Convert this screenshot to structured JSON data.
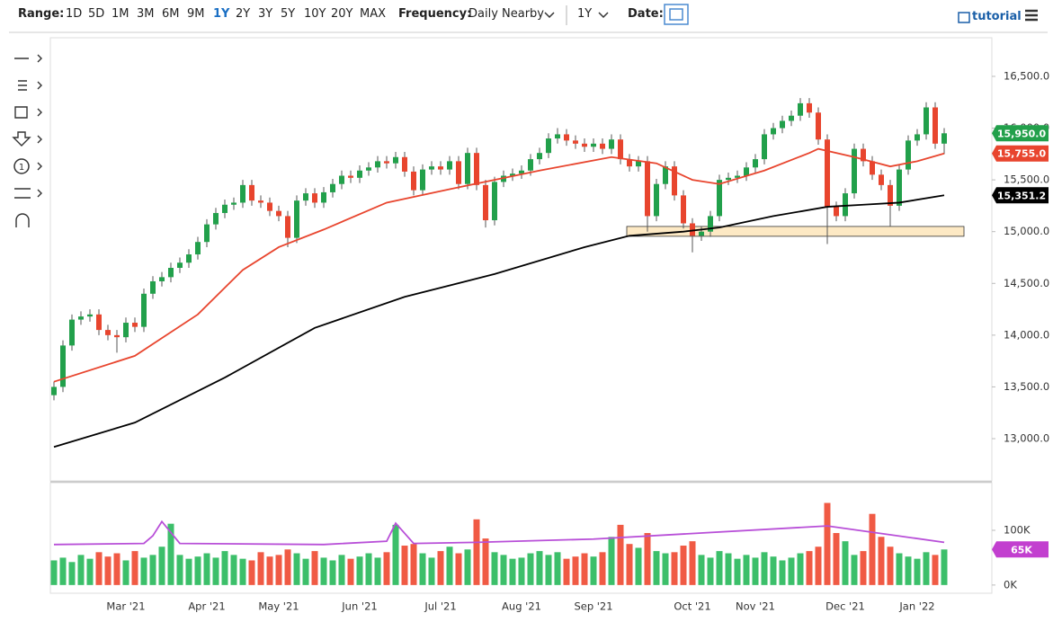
{
  "toolbar": {
    "range_label": "Range:",
    "ranges": [
      "1D",
      "5D",
      "1M",
      "3M",
      "6M",
      "9M",
      "1Y",
      "2Y",
      "3Y",
      "5Y",
      "10Y",
      "20Y",
      "MAX"
    ],
    "active_range_index": 6,
    "frequency_label": "Frequency:",
    "frequency": "Daily Nearby",
    "period": "1Y",
    "date_label": "Date:",
    "tutorial": "tutorial",
    "tool_number": "1"
  },
  "chart_data": {
    "type": "candlestick",
    "categories": [
      null,
      null,
      null,
      null,
      null,
      null,
      null,
      null,
      "Mar '21",
      null,
      null,
      null,
      null,
      null,
      null,
      null,
      null,
      "Apr '21",
      null,
      null,
      null,
      null,
      null,
      null,
      null,
      "May '21",
      null,
      null,
      null,
      null,
      null,
      null,
      null,
      null,
      "Jun '21",
      null,
      null,
      null,
      null,
      null,
      null,
      null,
      null,
      "Jul '21",
      null,
      null,
      null,
      null,
      null,
      null,
      null,
      null,
      "Aug '21",
      null,
      null,
      null,
      null,
      null,
      null,
      null,
      "Sep '21",
      null,
      null,
      null,
      null,
      null,
      null,
      null,
      null,
      null,
      null,
      "Oct '21",
      null,
      null,
      null,
      null,
      null,
      null,
      "Nov '21",
      null,
      null,
      null,
      null,
      null,
      null,
      null,
      null,
      null,
      "Dec '21",
      null,
      null,
      null,
      null,
      null,
      null,
      null,
      "Jan '22",
      null,
      null,
      null
    ],
    "ohlc": {
      "open": [
        13420,
        13500,
        13900,
        14150,
        14180,
        14200,
        14050,
        14000,
        13980,
        14120,
        14080,
        14400,
        14520,
        14560,
        14650,
        14700,
        14780,
        14900,
        15070,
        15180,
        15260,
        15280,
        15450,
        15300,
        15280,
        15200,
        15150,
        14940,
        15300,
        15370,
        15280,
        15380,
        15460,
        15540,
        15520,
        15590,
        15620,
        15680,
        15660,
        15720,
        15580,
        15400,
        15600,
        15630,
        15600,
        15680,
        15460,
        15760,
        15450,
        15110,
        15480,
        15540,
        15560,
        15590,
        15700,
        15760,
        15900,
        15940,
        15880,
        15850,
        15820,
        15850,
        15800,
        15890,
        15700,
        15630,
        15680,
        15150,
        15460,
        15630,
        15350,
        15080,
        14960,
        15000,
        15150,
        15500,
        15520,
        15540,
        15620,
        15700,
        15940,
        16000,
        16070,
        16120,
        16240,
        16150,
        15890,
        15240,
        15150,
        15370,
        15800,
        15680,
        15550,
        15450,
        15250,
        15600,
        15880,
        15940,
        16200,
        15850
      ],
      "high": [
        13550,
        13950,
        14200,
        14230,
        14250,
        14250,
        14100,
        14050,
        14170,
        14170,
        14450,
        14570,
        14610,
        14700,
        14750,
        14830,
        14950,
        15120,
        15230,
        15310,
        15330,
        15500,
        15500,
        15350,
        15330,
        15250,
        15200,
        15350,
        15420,
        15420,
        15430,
        15510,
        15590,
        15590,
        15640,
        15670,
        15730,
        15730,
        15770,
        15770,
        15630,
        15650,
        15680,
        15680,
        15730,
        15730,
        15810,
        15810,
        15500,
        15530,
        15590,
        15610,
        15640,
        15750,
        15810,
        15950,
        16000,
        15990,
        15930,
        15900,
        15900,
        15900,
        15940,
        15940,
        15750,
        15730,
        15730,
        15510,
        15680,
        15680,
        15400,
        15130,
        15050,
        15200,
        15550,
        15570,
        15590,
        15670,
        15750,
        15990,
        16050,
        16120,
        16170,
        16290,
        16290,
        16200,
        15940,
        15290,
        15420,
        15850,
        15850,
        15730,
        15600,
        15500,
        15650,
        15930,
        15990,
        16250,
        16250,
        16000
      ],
      "low": [
        13370,
        13450,
        13850,
        14100,
        14130,
        14000,
        13950,
        13830,
        13930,
        14030,
        14030,
        14350,
        14470,
        14510,
        14600,
        14650,
        14730,
        14850,
        15020,
        15130,
        15210,
        15230,
        15250,
        15230,
        15150,
        15100,
        14850,
        14890,
        15250,
        15230,
        15230,
        15330,
        15410,
        15470,
        15470,
        15540,
        15570,
        15610,
        15610,
        15530,
        15350,
        15350,
        15550,
        15550,
        15550,
        15410,
        15410,
        15400,
        15040,
        15060,
        15430,
        15490,
        15510,
        15540,
        15650,
        15710,
        15850,
        15830,
        15800,
        15770,
        15770,
        15750,
        15750,
        15650,
        15580,
        15580,
        15000,
        15100,
        15410,
        15300,
        15030,
        14800,
        14910,
        14950,
        15100,
        15450,
        15470,
        15490,
        15570,
        15650,
        15890,
        15950,
        16020,
        16070,
        16100,
        15840,
        14880,
        15100,
        15100,
        15320,
        15630,
        15500,
        15400,
        15050,
        15200,
        15550,
        15830,
        15890,
        15800,
        15750
      ],
      "close": [
        13500,
        13900,
        14150,
        14180,
        14200,
        14050,
        14000,
        13980,
        14120,
        14080,
        14400,
        14520,
        14560,
        14650,
        14700,
        14780,
        14900,
        15070,
        15180,
        15260,
        15280,
        15450,
        15300,
        15280,
        15200,
        15150,
        14940,
        15300,
        15370,
        15280,
        15380,
        15460,
        15540,
        15520,
        15590,
        15620,
        15680,
        15660,
        15720,
        15580,
        15400,
        15600,
        15630,
        15600,
        15680,
        15460,
        15760,
        15450,
        15110,
        15480,
        15540,
        15560,
        15590,
        15700,
        15760,
        15900,
        15940,
        15880,
        15850,
        15820,
        15850,
        15800,
        15890,
        15700,
        15630,
        15680,
        15150,
        15460,
        15630,
        15350,
        15080,
        14960,
        15000,
        15150,
        15500,
        15520,
        15540,
        15620,
        15700,
        15940,
        16000,
        16070,
        16120,
        16240,
        16150,
        15890,
        15240,
        15150,
        15370,
        15800,
        15680,
        15550,
        15450,
        15250,
        15600,
        15880,
        15940,
        16200,
        15850,
        15950
      ],
      "up_color": "#22a04b",
      "down_color": "#e8452e",
      "wick_color": "#555555"
    },
    "moving_averages": [
      {
        "color": "#e8452e",
        "x": [
          0,
          9,
          16,
          21,
          25,
          30,
          37,
          44,
          54,
          62,
          67,
          71,
          74,
          79,
          84,
          85,
          89,
          93,
          96,
          99
        ],
        "values": [
          13550,
          13800,
          14200,
          14630,
          14850,
          15020,
          15280,
          15410,
          15590,
          15720,
          15660,
          15500,
          15460,
          15590,
          15760,
          15800,
          15720,
          15630,
          15680,
          15755
        ]
      },
      {
        "color": "#000000",
        "x": [
          0,
          9,
          19,
          29,
          39,
          49,
          59,
          64,
          70,
          74,
          80,
          86,
          90,
          94,
          99
        ],
        "values": [
          12920,
          13155,
          13590,
          14070,
          14370,
          14590,
          14850,
          14960,
          15000,
          15040,
          15150,
          15240,
          15260,
          15280,
          15351.2
        ]
      }
    ],
    "support_zone": {
      "low": 14955,
      "high": 15050,
      "color": "#fde9c4"
    },
    "ylim": [
      12592,
      16873
    ],
    "yticks": [
      {
        "value": 13000,
        "label": "13,000.0"
      },
      {
        "value": 13500,
        "label": "13,500.0"
      },
      {
        "value": 14000,
        "label": "14,000.0"
      },
      {
        "value": 14500,
        "label": "14,500.0"
      },
      {
        "value": 15000,
        "label": "15,000.0"
      },
      {
        "value": 15500,
        "label": "15,500.0"
      },
      {
        "value": 16000,
        "label": "16,000.0"
      },
      {
        "value": 16500,
        "label": "16,500.0"
      }
    ],
    "price_labels": [
      {
        "value": 15950,
        "label": "15,950.0",
        "color": "#22a04b"
      },
      {
        "value": 15755,
        "label": "15,755.0",
        "color": "#e8452e"
      },
      {
        "value": 15351.2,
        "label": "15,351.2",
        "color": "#000000"
      }
    ],
    "volume": {
      "values": [
        45,
        50,
        42,
        55,
        48,
        60,
        52,
        58,
        45,
        62,
        50,
        55,
        70,
        112,
        55,
        48,
        52,
        58,
        50,
        62,
        55,
        48,
        45,
        60,
        52,
        55,
        65,
        58,
        48,
        62,
        50,
        45,
        55,
        48,
        52,
        58,
        50,
        60,
        110,
        72,
        75,
        58,
        50,
        62,
        70,
        58,
        65,
        120,
        85,
        60,
        55,
        48,
        50,
        58,
        62,
        55,
        60,
        48,
        52,
        58,
        52,
        60,
        88,
        110,
        75,
        68,
        95,
        62,
        58,
        60,
        72,
        80,
        55,
        50,
        62,
        58,
        48,
        55,
        50,
        60,
        52,
        45,
        50,
        58,
        62,
        70,
        150,
        95,
        80,
        55,
        62,
        130,
        88,
        70,
        58,
        52,
        48,
        60,
        55,
        65
      ],
      "up_color": "#3cbf6a",
      "down_color": "#f05a44",
      "ylim": [
        -15,
        187
      ],
      "yticks": [
        {
          "value": 100,
          "label": "100K"
        },
        {
          "value": 0,
          "label": "0K"
        }
      ],
      "ma": {
        "color": "#b84fd8",
        "x": [
          0,
          10,
          11,
          12,
          14,
          30,
          37,
          38,
          40,
          47,
          60,
          86,
          99
        ],
        "values": [
          74,
          76,
          90,
          116,
          76,
          74,
          80,
          113,
          76,
          78,
          84,
          108,
          78
        ]
      },
      "last_label": {
        "value": 65,
        "label": "65K",
        "color": "#c23fcf"
      }
    }
  }
}
